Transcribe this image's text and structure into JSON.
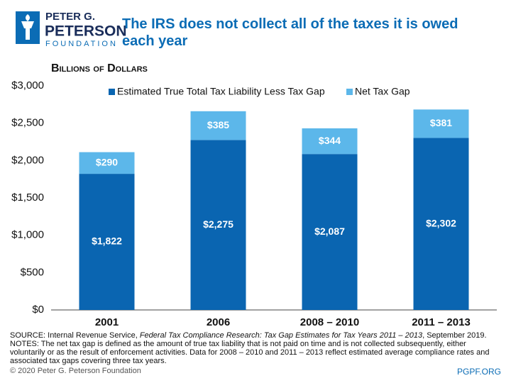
{
  "logo": {
    "line1": "PETER G.",
    "line2": "PETERSON",
    "line3": "FOUNDATION"
  },
  "chart_data": {
    "type": "stacked_bar",
    "title": "The IRS does not collect all of the taxes it is owed each year",
    "subtitle": "Billions of Dollars",
    "categories": [
      "2001",
      "2006",
      "2008 – 2010",
      "2011 – 2013"
    ],
    "series": [
      {
        "name": "Estimated True Total Tax Liability Less Tax Gap",
        "color": "#0a65b1",
        "values": [
          1822,
          2275,
          2087,
          2302
        ],
        "value_labels": [
          "$1,822",
          "$2,275",
          "$2,087",
          "$2,302"
        ]
      },
      {
        "name": "Net Tax Gap",
        "color": "#5cb7ea",
        "values": [
          290,
          385,
          344,
          381
        ],
        "value_labels": [
          "$290",
          "$385",
          "$344",
          "$381"
        ]
      }
    ],
    "ylim": [
      0,
      3000
    ],
    "yticks": [
      {
        "value": 0,
        "label": "$0"
      },
      {
        "value": 500,
        "label": "$500"
      },
      {
        "value": 1000,
        "label": "$1,000"
      },
      {
        "value": 1500,
        "label": "$1,500"
      },
      {
        "value": 2000,
        "label": "$2,000"
      },
      {
        "value": 2500,
        "label": "$2,500"
      },
      {
        "value": 3000,
        "label": "$3,000"
      }
    ],
    "grid": false,
    "legend": "top"
  },
  "footer": {
    "source_prefix": "SOURCE: Internal Revenue Service, ",
    "source_title": "Federal Tax Compliance Research: Tax Gap Estimates for Tax Years 2011 – 2013",
    "source_suffix": ", September 2019.",
    "notes": "NOTES: The net tax gap is defined as the amount of true tax liability that is not paid on time and is not collected subsequently, either voluntarily or as the result of enforcement activities. Data for 2008 – 2010 and 2011 – 2013 reflect estimated average compliance rates and associated tax gaps covering three tax years.",
    "copyright": "© 2020 Peter G. Peterson Foundation",
    "website": "PGPF.ORG"
  }
}
